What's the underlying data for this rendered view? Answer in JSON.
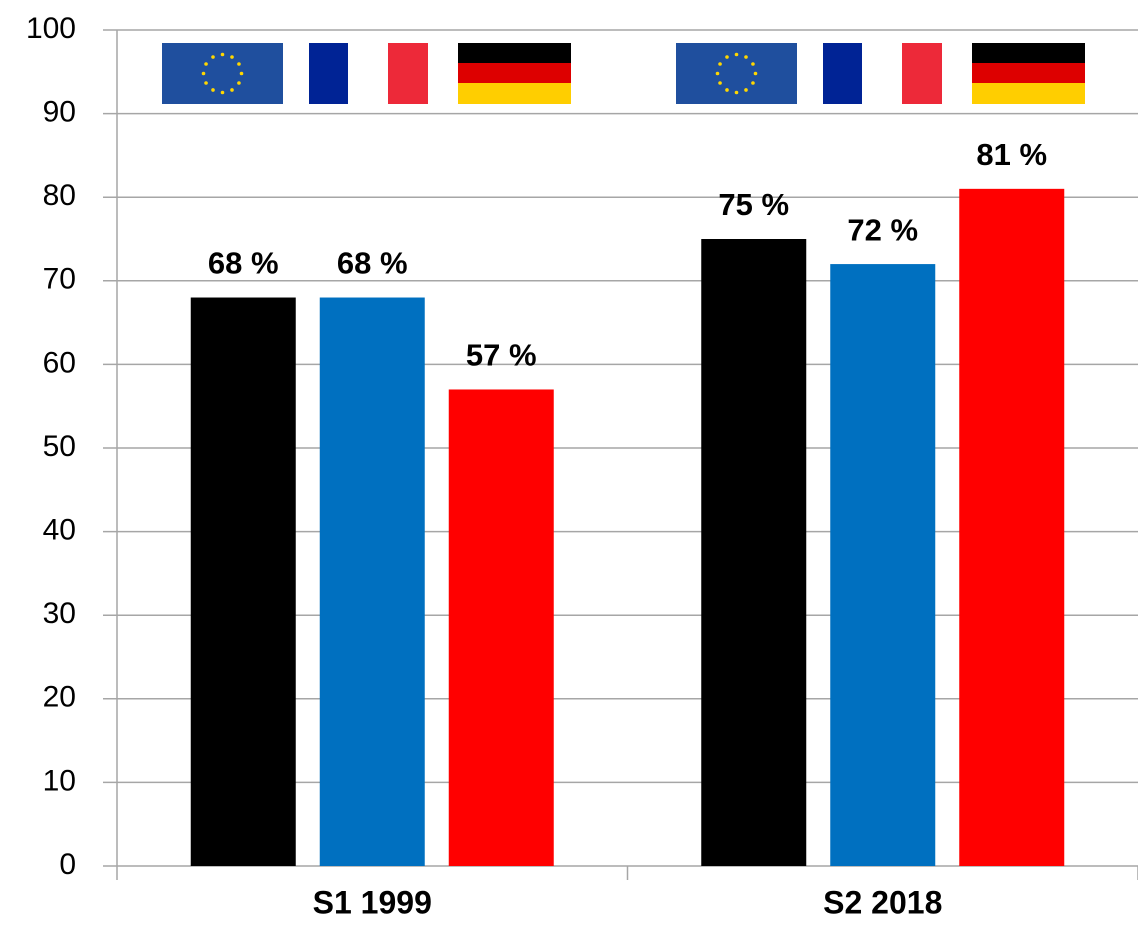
{
  "chart_data": {
    "type": "bar",
    "categories": [
      "S1 1999",
      "S2 2018"
    ],
    "series": [
      {
        "color": "#000000",
        "values": [
          68,
          75
        ],
        "value_labels": [
          "68 %",
          "75 %"
        ]
      },
      {
        "color": "#0070c0",
        "values": [
          68,
          72
        ],
        "value_labels": [
          "68 %",
          "72 %"
        ]
      },
      {
        "color": "#ff0000",
        "values": [
          57,
          81
        ],
        "value_labels": [
          "57 %",
          "81 %"
        ]
      }
    ],
    "ylim": [
      0,
      100
    ],
    "yticks": [
      0,
      10,
      20,
      30,
      40,
      50,
      60,
      70,
      80,
      90,
      100
    ],
    "grid": true
  }
}
